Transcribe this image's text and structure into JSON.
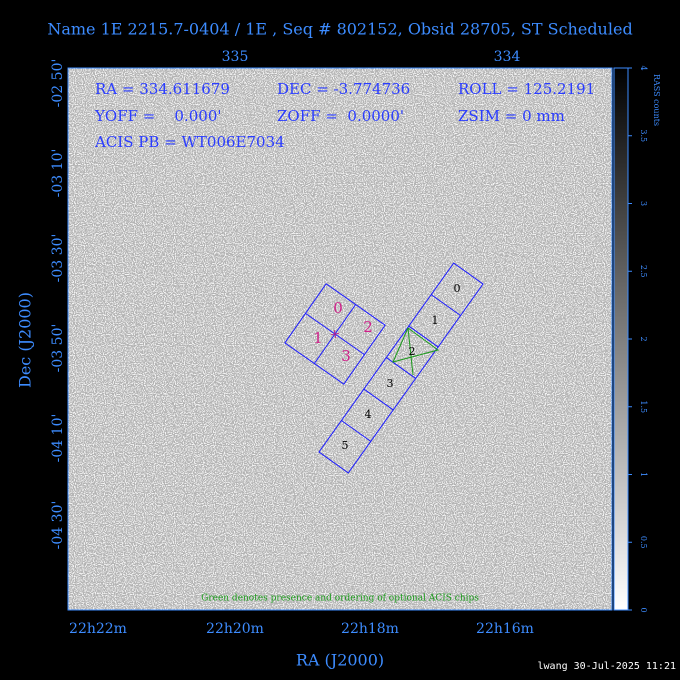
{
  "header": {
    "title": "Name 1E 2215.7-0404 / 1E , Seq # 802152, Obsid 28705, ST Scheduled"
  },
  "axes": {
    "top_ticks": [
      "335",
      "334"
    ],
    "left_ticks": [
      "-02 50'",
      "-03 10'",
      "-03 30'",
      "-03 50'",
      "-04 10'",
      "-04 30'"
    ],
    "bottom_ticks": [
      "22h22m",
      "22h20m",
      "22h18m",
      "22h16m"
    ],
    "x_title": "RA (J2000)",
    "y_title": "Dec (J2000)"
  },
  "info": [
    "RA = 334.611679",
    "DEC = -3.774736",
    "ROLL = 125.2191",
    "YOFF =    0.000'",
    "ZOFF =  0.0000'",
    "ZSIM = 0 mm",
    "ACIS PB = WT006E7034"
  ],
  "chips": {
    "acis_i": [
      "0",
      "1",
      "2",
      "3"
    ],
    "acis_s": [
      "0",
      "1",
      "2",
      "3",
      "4",
      "5"
    ]
  },
  "note": "Green denotes presence and ordering of optional ACIS chips",
  "colorbar": {
    "label": "RASS counts",
    "range": [
      0,
      4
    ],
    "ticks": [
      0,
      0.5,
      1,
      1.5,
      2,
      2.5,
      3,
      3.5,
      4
    ]
  },
  "footer": "lwang 30-Jul-2025 11:21"
}
